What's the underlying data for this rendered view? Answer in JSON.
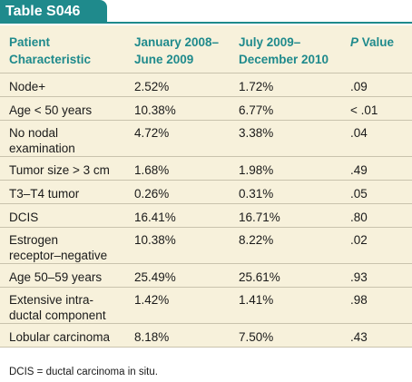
{
  "title": "Table S046",
  "header": {
    "col1": "Patient\nCharacteristic",
    "col2": "January 2008–\nJune 2009",
    "col3": "July 2009–\nDecember 2010",
    "col4_p": "P",
    "col4_value": " Value"
  },
  "rows": [
    {
      "characteristic": "Node+",
      "period1": "2.52%",
      "period2": "1.72%",
      "p": ".09"
    },
    {
      "characteristic": "Age < 50 years",
      "period1": "10.38%",
      "period2": "6.77%",
      "p": "< .01"
    },
    {
      "characteristic": "No nodal\nexamination",
      "period1": "4.72%",
      "period2": "3.38%",
      "p": ".04"
    },
    {
      "characteristic": "Tumor size > 3 cm",
      "period1": "1.68%",
      "period2": "1.98%",
      "p": ".49"
    },
    {
      "characteristic": "T3–T4 tumor",
      "period1": "0.26%",
      "period2": "0.31%",
      "p": ".05"
    },
    {
      "characteristic": "DCIS",
      "period1": "16.41%",
      "period2": "16.71%",
      "p": ".80"
    },
    {
      "characteristic": "Estrogen\nreceptor–negative",
      "period1": "10.38%",
      "period2": "8.22%",
      "p": ".02"
    },
    {
      "characteristic": "Age 50–59 years",
      "period1": "25.49%",
      "period2": "25.61%",
      "p": ".93"
    },
    {
      "characteristic": "Extensive intra-\nductal component",
      "period1": "1.42%",
      "period2": "1.41%",
      "p": ".98"
    },
    {
      "characteristic": "Lobular carcinoma",
      "period1": "8.18%",
      "period2": "7.50%",
      "p": ".43"
    }
  ],
  "footnote": "DCIS = ductal carcinoma in situ.",
  "colors": {
    "accent": "#1f8a8c",
    "table_bg": "#f7f1db",
    "rule": "#c9c3ad"
  }
}
